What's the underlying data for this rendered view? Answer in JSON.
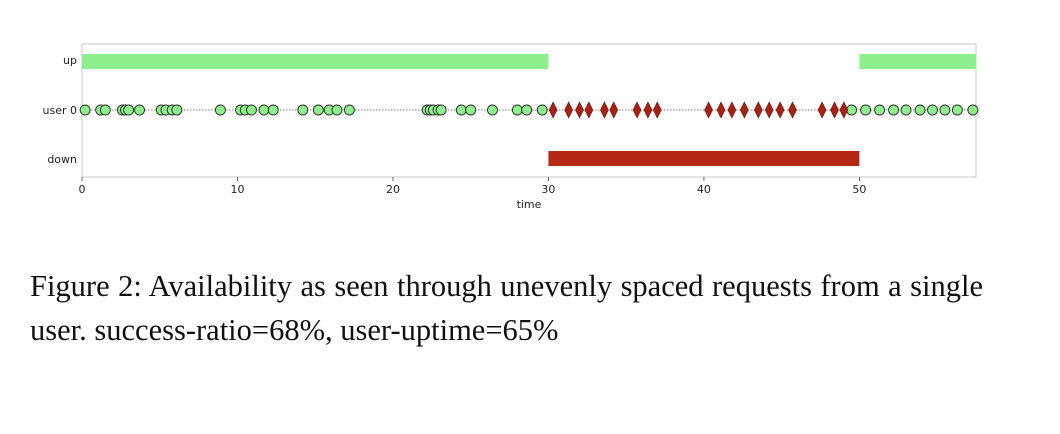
{
  "chart_data": {
    "type": "scatter",
    "xlabel": "time",
    "xlim": [
      0,
      57.5
    ],
    "x_ticks": [
      0,
      10,
      20,
      30,
      40,
      50
    ],
    "rows": [
      "up",
      "user 0",
      "down"
    ],
    "grid": false,
    "up_intervals": [
      [
        0,
        30
      ],
      [
        50,
        57.5
      ]
    ],
    "down_intervals": [
      [
        30,
        50
      ]
    ],
    "requests_ok": [
      0.2,
      1.2,
      1.5,
      2.6,
      2.8,
      3.0,
      3.7,
      5.1,
      5.4,
      5.8,
      6.1,
      8.9,
      10.2,
      10.5,
      10.9,
      11.7,
      12.3,
      14.2,
      15.2,
      15.9,
      16.4,
      17.2,
      22.2,
      22.4,
      22.6,
      22.9,
      23.1,
      24.4,
      25.0,
      26.4,
      28.0,
      28.6,
      29.6,
      49.5,
      50.4,
      51.3,
      52.2,
      53.0,
      53.9,
      54.7,
      55.5,
      56.3,
      57.3
    ],
    "requests_fail": [
      30.3,
      31.3,
      32.0,
      32.6,
      33.6,
      34.2,
      35.7,
      36.4,
      37.0,
      40.3,
      41.1,
      41.8,
      42.6,
      43.5,
      44.2,
      44.9,
      45.7,
      47.6,
      48.4,
      49.0
    ]
  },
  "colors": {
    "up": "#8ef08c",
    "down": "#b32916",
    "ok_marker": "#8ef08c",
    "fail_marker": "#a62214",
    "axis": "#c8c8c8"
  },
  "caption": "Figure 2:  Availability as seen through unevenly spaced requests from a single user.   success-ratio=68%, user-uptime=65%"
}
